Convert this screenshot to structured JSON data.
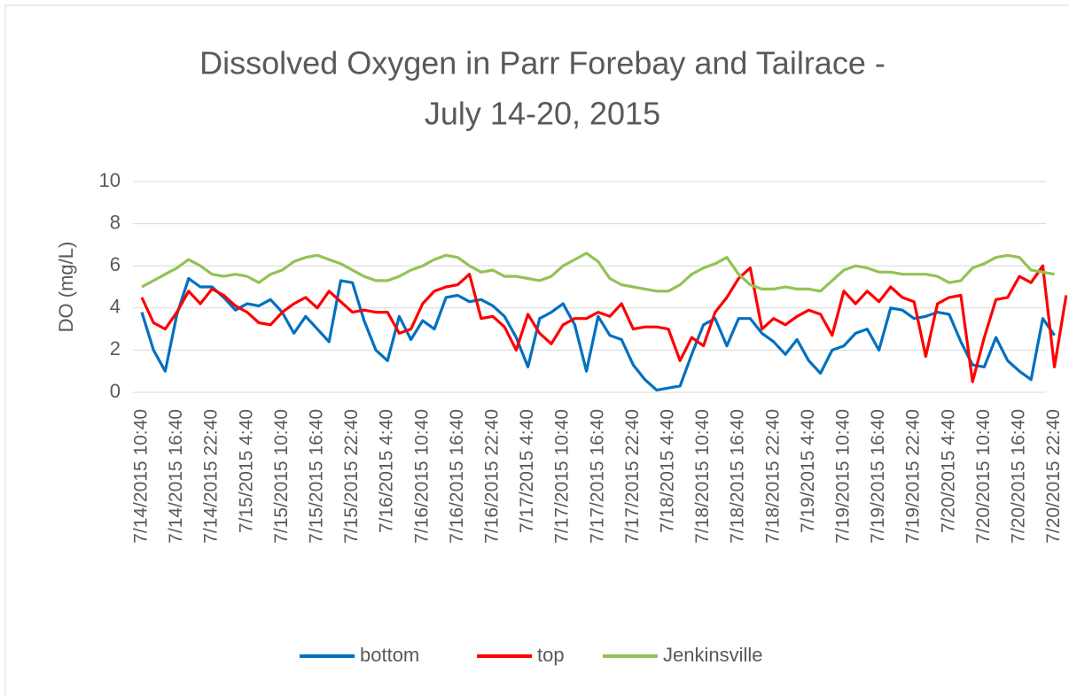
{
  "chart_data": {
    "type": "line",
    "title": [
      "Dissolved Oxygen in Parr Forebay and Tailrace -",
      "July 14-20, 2015"
    ],
    "y_label": "DO (mg/L)",
    "categories": [
      "7/14/2015 10:40",
      null,
      null,
      "7/14/2015 16:40",
      null,
      null,
      "7/14/2015 22:40",
      null,
      null,
      "7/15/2015 4:40",
      null,
      null,
      "7/15/2015 10:40",
      null,
      null,
      "7/15/2015 16:40",
      null,
      null,
      "7/15/2015 22:40",
      null,
      null,
      "7/16/2015 4:40",
      null,
      null,
      "7/16/2015 10:40",
      null,
      null,
      "7/16/2015 16:40",
      null,
      null,
      "7/16/2015 22:40",
      null,
      null,
      "7/17/2015 4:40",
      null,
      null,
      "7/17/2015 10:40",
      null,
      null,
      "7/17/2015 16:40",
      null,
      null,
      "7/17/2015 22:40",
      null,
      null,
      "7/18/2015 4:40",
      null,
      null,
      "7/18/2015 10:40",
      null,
      null,
      "7/18/2015 16:40",
      null,
      null,
      "7/18/2015 22:40",
      null,
      null,
      "7/19/2015 4:40",
      null,
      null,
      "7/19/2015 10:40",
      null,
      null,
      "7/19/2015 16:40",
      null,
      null,
      "7/19/2015 22:40",
      null,
      null,
      "7/20/2015 4:40",
      null,
      null,
      "7/20/2015 10:40",
      null,
      null,
      "7/20/2015 16:40",
      null,
      null,
      "7/20/2015 22:40",
      null
    ],
    "series": [
      {
        "name": "bottom",
        "color": "#0070c0",
        "values": [
          3.8,
          2.0,
          1.0,
          3.7,
          5.4,
          5.0,
          5.0,
          4.5,
          3.9,
          4.2,
          4.1,
          4.4,
          3.8,
          2.8,
          3.6,
          3.0,
          2.4,
          5.3,
          5.2,
          3.4,
          2.0,
          1.5,
          3.6,
          2.5,
          3.4,
          3.0,
          4.5,
          4.6,
          4.3,
          4.4,
          4.1,
          3.6,
          2.6,
          1.2,
          3.5,
          3.8,
          4.2,
          3.2,
          1.0,
          3.6,
          2.7,
          2.5,
          1.3,
          0.6,
          0.1,
          0.2,
          0.3,
          1.8,
          3.2,
          3.5,
          2.2,
          3.5,
          3.5,
          2.8,
          2.4,
          1.8,
          2.5,
          1.5,
          0.9,
          2.0,
          2.2,
          2.8,
          3.0,
          2.0,
          4.0,
          3.9,
          3.5,
          3.6,
          3.8,
          3.7,
          2.4,
          1.3,
          1.2,
          2.6,
          1.5,
          1.0,
          0.6,
          3.5,
          2.7,
          null
        ]
      },
      {
        "name": "top",
        "color": "#ff0000",
        "values": [
          4.5,
          3.3,
          3.0,
          3.8,
          4.8,
          4.2,
          4.9,
          4.6,
          4.1,
          3.8,
          3.3,
          3.2,
          3.8,
          4.2,
          4.5,
          4.0,
          4.8,
          4.3,
          3.8,
          3.9,
          3.8,
          3.8,
          2.8,
          3.0,
          4.2,
          4.8,
          5.0,
          5.1,
          5.6,
          3.5,
          3.6,
          3.1,
          2.0,
          3.7,
          2.8,
          2.3,
          3.2,
          3.5,
          3.5,
          3.8,
          3.6,
          4.2,
          3.0,
          3.1,
          3.1,
          3.0,
          1.5,
          2.6,
          2.2,
          3.8,
          4.5,
          5.4,
          5.9,
          3.0,
          3.5,
          3.2,
          3.6,
          3.9,
          3.7,
          2.7,
          4.8,
          4.2,
          4.8,
          4.3,
          5.0,
          4.5,
          4.3,
          1.7,
          4.2,
          4.5,
          4.6,
          0.5,
          2.6,
          4.4,
          4.5,
          5.5,
          5.2,
          6.0,
          1.2,
          4.6
        ]
      },
      {
        "name": "Jenkinsville",
        "color": "#92c353",
        "values": [
          5.0,
          5.3,
          5.6,
          5.9,
          6.3,
          6.0,
          5.6,
          5.5,
          5.6,
          5.5,
          5.2,
          5.6,
          5.8,
          6.2,
          6.4,
          6.5,
          6.3,
          6.1,
          5.8,
          5.5,
          5.3,
          5.3,
          5.5,
          5.8,
          6.0,
          6.3,
          6.5,
          6.4,
          6.0,
          5.7,
          5.8,
          5.5,
          5.5,
          5.4,
          5.3,
          5.5,
          6.0,
          6.3,
          6.6,
          6.2,
          5.4,
          5.1,
          5.0,
          4.9,
          4.8,
          4.8,
          5.1,
          5.6,
          5.9,
          6.1,
          6.4,
          5.6,
          5.1,
          4.9,
          4.9,
          5.0,
          4.9,
          4.9,
          4.8,
          5.3,
          5.8,
          6.0,
          5.9,
          5.7,
          5.7,
          5.6,
          5.6,
          5.6,
          5.5,
          5.2,
          5.3,
          5.9,
          6.1,
          6.4,
          6.5,
          6.4,
          5.8,
          5.7,
          5.6,
          null
        ]
      }
    ],
    "ylim": [
      0,
      10
    ],
    "yticks": [
      0,
      2,
      4,
      6,
      8,
      10
    ],
    "grid": true,
    "legend": "bottom"
  }
}
